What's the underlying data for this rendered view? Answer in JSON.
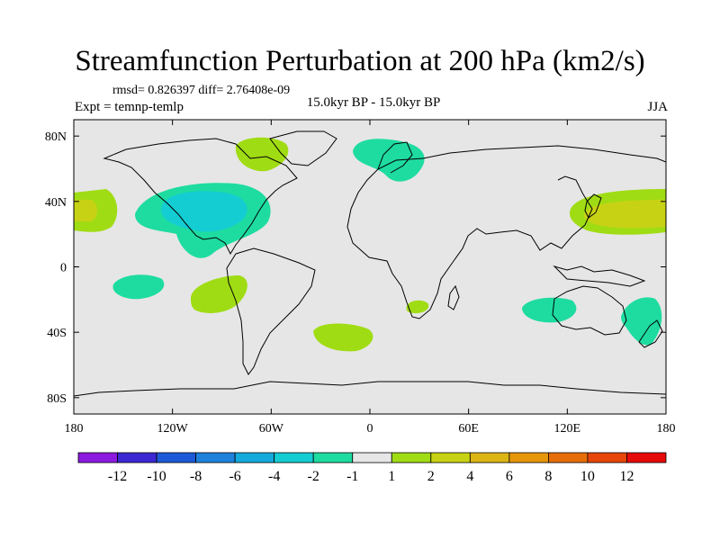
{
  "header": {
    "title": "Streamfunction Perturbation at 200 hPa (km2/s)",
    "stats": "rmsd= 0.826397 diff= 2.76408e-09",
    "experiment": "Expt = temnp-temlp",
    "period": "15.0kyr BP - 15.0kyr BP",
    "season": "JJA"
  },
  "map": {
    "lat_ticks": [
      "80N",
      "40N",
      "0",
      "40S",
      "80S"
    ],
    "lat_values": [
      80,
      40,
      0,
      -40,
      -80
    ],
    "lon_ticks": [
      "180",
      "120W",
      "60W",
      "0",
      "60E",
      "120E",
      "180"
    ],
    "lon_values": [
      -180,
      -120,
      -60,
      0,
      60,
      120,
      180
    ],
    "lat_range": [
      -90,
      90
    ],
    "lon_range": [
      -180,
      180
    ],
    "background": "#e6e6e6"
  },
  "colorbar": {
    "colors": [
      "#8c1be0",
      "#3c28d2",
      "#1e5ad8",
      "#1e82dc",
      "#14aadc",
      "#14cdd2",
      "#1edca0",
      "#e6e6e6",
      "#a0dc14",
      "#c8d214",
      "#dcb414",
      "#e6960a",
      "#e66e0a",
      "#e6460a",
      "#e60a0a"
    ],
    "labels": [
      "-12",
      "-10",
      "-8",
      "-6",
      "-4",
      "-2",
      "-1",
      "1",
      "2",
      "4",
      "6",
      "8",
      "10",
      "12"
    ]
  },
  "regions": [
    {
      "name": "north-america-negative",
      "color": "#1edca0"
    },
    {
      "name": "north-america-core",
      "color": "#14cdd2"
    },
    {
      "name": "canada-positive",
      "color": "#a0dc14"
    },
    {
      "name": "scandinavia-negative",
      "color": "#1edca0"
    },
    {
      "name": "pacific-east-positive",
      "color": "#a0dc14"
    },
    {
      "name": "pacific-east-core",
      "color": "#c8d214"
    },
    {
      "name": "pacific-west-positive",
      "color": "#a0dc14"
    },
    {
      "name": "pacific-west-core",
      "color": "#c8d214"
    },
    {
      "name": "pacific-equator-negative",
      "color": "#1edca0"
    },
    {
      "name": "south-pacific-positive",
      "color": "#a0dc14"
    },
    {
      "name": "south-atlantic-positive",
      "color": "#a0dc14"
    },
    {
      "name": "south-africa-positive",
      "color": "#a0dc14"
    },
    {
      "name": "indian-ocean-negative",
      "color": "#1edca0"
    },
    {
      "name": "australia-east-negative",
      "color": "#1edca0"
    }
  ]
}
